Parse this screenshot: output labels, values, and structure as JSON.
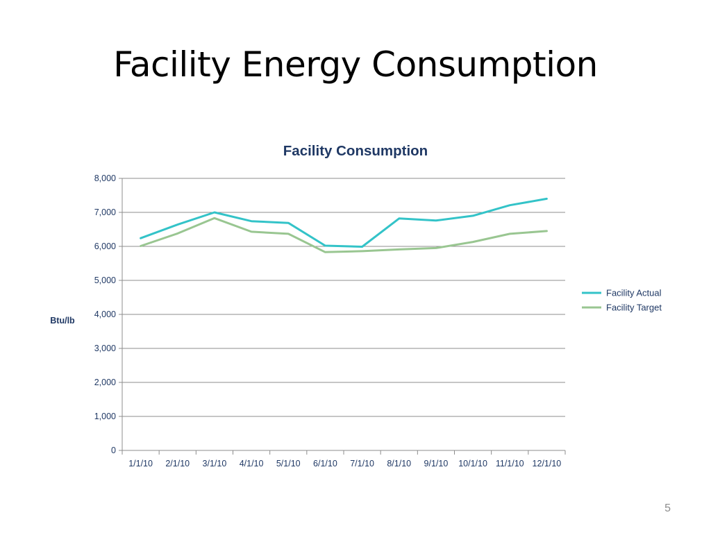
{
  "slide": {
    "title": "Facility Energy Consumption",
    "page_number": "5"
  },
  "chart_data": {
    "type": "line",
    "title": "Facility Consumption",
    "xlabel": "",
    "ylabel": "Btu/lb",
    "categories": [
      "1/1/10",
      "2/1/10",
      "3/1/10",
      "4/1/10",
      "5/1/10",
      "6/1/10",
      "7/1/10",
      "8/1/10",
      "9/1/10",
      "10/1/10",
      "11/1/10",
      "12/1/10"
    ],
    "ylim": [
      0,
      8000
    ],
    "yticks": [
      0,
      1000,
      2000,
      3000,
      4000,
      5000,
      6000,
      7000,
      8000
    ],
    "ytick_labels": [
      "0",
      "1,000",
      "2,000",
      "3,000",
      "4,000",
      "5,000",
      "6,000",
      "7,000",
      "8,000"
    ],
    "grid": true,
    "legend_position": "right",
    "series": [
      {
        "name": "Facility Actual",
        "color": "#33c3c8",
        "values": [
          6240,
          6640,
          7000,
          6740,
          6690,
          6020,
          5990,
          6820,
          6760,
          6900,
          7210,
          7400
        ]
      },
      {
        "name": "Facility Target",
        "color": "#99c691",
        "values": [
          6010,
          6380,
          6830,
          6430,
          6370,
          5830,
          5860,
          5910,
          5950,
          6130,
          6370,
          6450
        ]
      }
    ]
  }
}
